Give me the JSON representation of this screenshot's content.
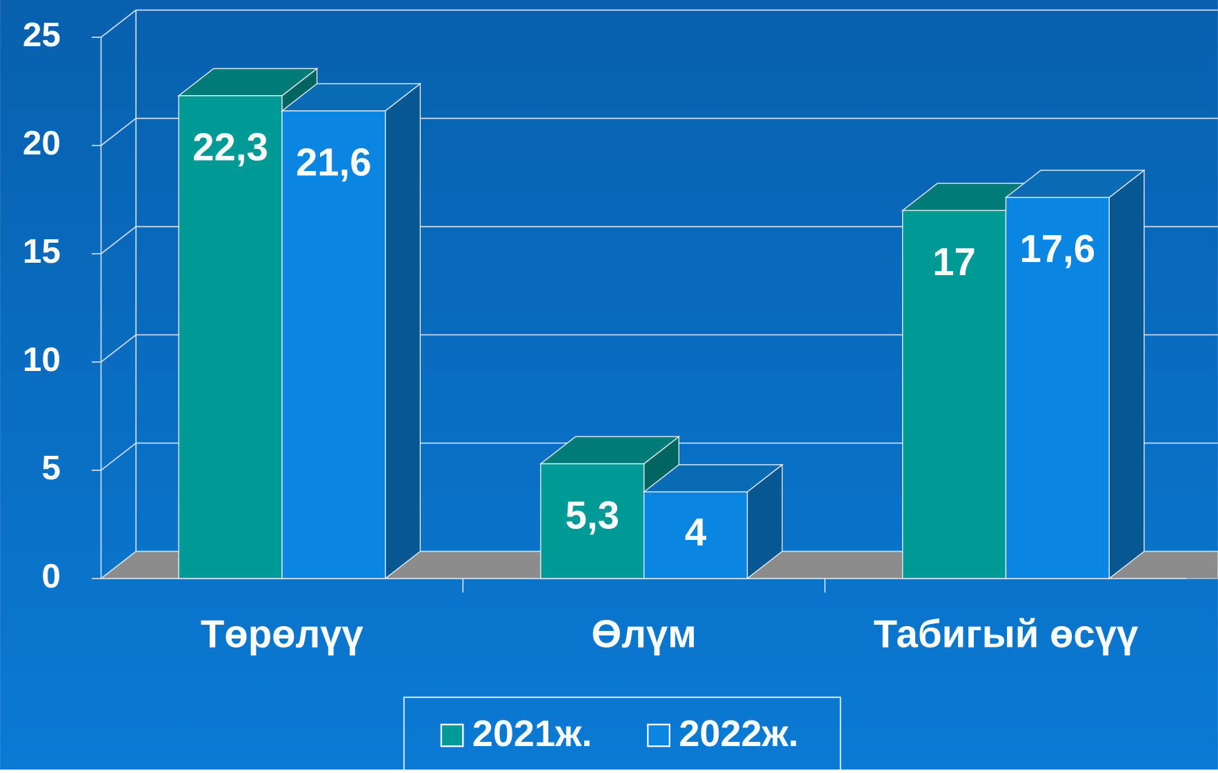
{
  "chart_data": {
    "type": "bar3d",
    "categories": [
      "Төрөлүү",
      "Өлүм",
      "Табигый өсүү"
    ],
    "series": [
      {
        "name": "2021ж.",
        "color": "#009a96",
        "values": [
          22.3,
          5.3,
          17
        ],
        "value_labels": [
          "22,3",
          "5,3",
          "17"
        ]
      },
      {
        "name": "2022ж.",
        "color": "#0a86e2",
        "values": [
          21.6,
          4,
          17.6
        ],
        "value_labels": [
          "21,6",
          "4",
          "17,6"
        ]
      }
    ],
    "ylim": [
      0,
      25
    ],
    "yticks": [
      0,
      5,
      10,
      15,
      20,
      25
    ],
    "grid": true
  }
}
